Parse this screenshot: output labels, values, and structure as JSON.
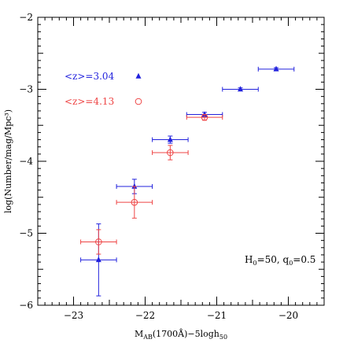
{
  "chart_data": {
    "type": "scatter",
    "xlabel": "M_AB(1700Å)−5logh_50",
    "xlabel_parts": {
      "base": "M",
      "sub1": "AB",
      "mid": "(1700Å)−5logh",
      "sub2": "50"
    },
    "ylabel": "log(Number/mag/Mpc³)",
    "xlim": [
      -23.5,
      -19.5
    ],
    "ylim": [
      -6,
      -2
    ],
    "xticks": [
      -23,
      -22,
      -21,
      -20
    ],
    "yticks": [
      -6,
      -5,
      -4,
      -3,
      -2
    ],
    "xtick_labels": [
      "−23",
      "−22",
      "−21",
      "−20"
    ],
    "ytick_labels": [
      "−6",
      "−5",
      "−4",
      "−3",
      "−2"
    ],
    "grid": false,
    "legend_placement": "top-left",
    "annotation": {
      "text": "H_0=50, q_0=0.5",
      "parts": {
        "a": "H",
        "a_sub": "0",
        "b": "=50,  q",
        "b_sub": "0",
        "c": "=0.5"
      },
      "position": "bottom-right"
    },
    "series": [
      {
        "name": "<z>=3.04",
        "marker": "filled-triangle",
        "color": "#2222dd",
        "points": [
          {
            "x": -22.65,
            "y": -5.37,
            "xerr": 0.25,
            "yerr": 0.5
          },
          {
            "x": -22.15,
            "y": -4.35,
            "xerr": 0.25,
            "yerr": 0.1
          },
          {
            "x": -21.65,
            "y": -3.7,
            "xerr": 0.25,
            "yerr": 0.05
          },
          {
            "x": -21.17,
            "y": -3.35,
            "xerr": 0.25,
            "yerr": 0.03
          },
          {
            "x": -20.67,
            "y": -3.0,
            "xerr": 0.25,
            "yerr": 0.02
          },
          {
            "x": -20.17,
            "y": -2.72,
            "xerr": 0.25,
            "yerr": 0.02
          }
        ]
      },
      {
        "name": "<z>=4.13",
        "marker": "open-circle",
        "color": "#ee4444",
        "points": [
          {
            "x": -22.65,
            "y": -5.12,
            "xerr": 0.25,
            "yerr": 0.17
          },
          {
            "x": -22.15,
            "y": -4.57,
            "xerr": 0.25,
            "yerr": 0.22
          },
          {
            "x": -21.65,
            "y": -3.88,
            "xerr": 0.25,
            "yerr": 0.1
          },
          {
            "x": -21.17,
            "y": -3.39,
            "xerr": 0.25,
            "yerr": 0.04
          }
        ]
      }
    ]
  }
}
